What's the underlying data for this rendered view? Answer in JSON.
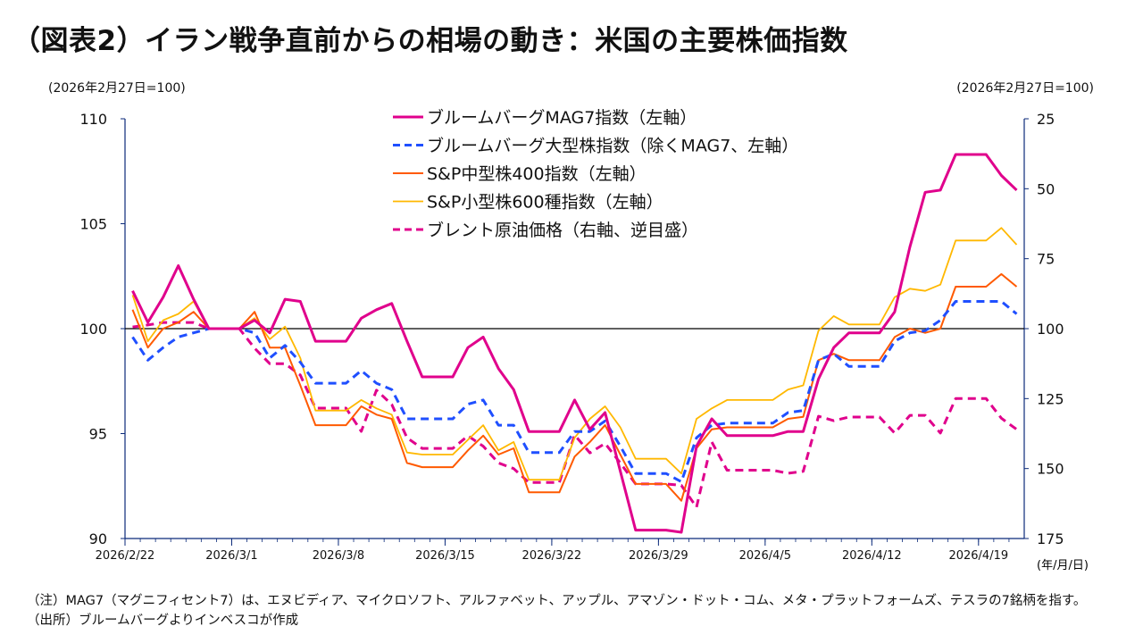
{
  "title": "（図表2）イラン戦争直前からの相場の動き：米国の主要株価指数",
  "notes": {
    "note": "（注）MAG7（マグニフィセント7）は、エヌビディア、マイクロソフト、アルファベット、アップル、アマゾン・ドット・コム、メタ・プラットフォームズ、テスラの7銘柄を指す。",
    "source": "（出所）ブルームバーグよりインベスコが作成"
  },
  "chart_data": {
    "type": "line",
    "title": "（図表2）イラン戦争直前からの相場の動き：米国の主要株価指数",
    "ylabel_left": "(2026年2月27日=100)",
    "ylabel_right": "(2026年2月27日=100)",
    "xlabel": "(年/月/日)",
    "ylim_left": [
      90,
      110
    ],
    "ylim_right": [
      25,
      175
    ],
    "right_axis_inverted": true,
    "yticks_left": [
      110,
      105,
      100,
      95,
      90
    ],
    "yticks_right": [
      25,
      50,
      75,
      100,
      125,
      150,
      175
    ],
    "xticks": [
      "2026/2/22",
      "2026/3/1",
      "2026/3/8",
      "2026/3/15",
      "2026/3/22",
      "2026/3/29",
      "2026/4/5",
      "2026/4/12",
      "2026/4/19"
    ],
    "reference_line": 100,
    "grid": false,
    "legend_placement": "top-center",
    "x": [
      "2026/2/22",
      "2026/2/23",
      "2026/2/24",
      "2026/2/25",
      "2026/2/26",
      "2026/2/27",
      "2026/2/28",
      "2026/3/1",
      "2026/3/2",
      "2026/3/3",
      "2026/3/4",
      "2026/3/5",
      "2026/3/6",
      "2026/3/7",
      "2026/3/8",
      "2026/3/9",
      "2026/3/10",
      "2026/3/11",
      "2026/3/12",
      "2026/3/13",
      "2026/3/14",
      "2026/3/15",
      "2026/3/16",
      "2026/3/17",
      "2026/3/18",
      "2026/3/19",
      "2026/3/20",
      "2026/3/21",
      "2026/3/22",
      "2026/3/23",
      "2026/3/24",
      "2026/3/25",
      "2026/3/26",
      "2026/3/27",
      "2026/3/28",
      "2026/3/29",
      "2026/3/30",
      "2026/3/31",
      "2026/4/1",
      "2026/4/2",
      "2026/4/3",
      "2026/4/4",
      "2026/4/5",
      "2026/4/6",
      "2026/4/7",
      "2026/4/8",
      "2026/4/9",
      "2026/4/10",
      "2026/4/11",
      "2026/4/12",
      "2026/4/13",
      "2026/4/14",
      "2026/4/15",
      "2026/4/16",
      "2026/4/17",
      "2026/4/18",
      "2026/4/19",
      "2026/4/20",
      "2026/4/21"
    ],
    "series": [
      {
        "name": "ブルームバーグMAG7指数（左軸）",
        "axis": "left",
        "color": "#e0008c",
        "style": "solid",
        "values": [
          101.8,
          100.3,
          101.5,
          103.0,
          101.4,
          100,
          100,
          100,
          100.4,
          99.8,
          101.4,
          101.3,
          99.4,
          99.4,
          99.4,
          100.5,
          100.9,
          101.2,
          99.4,
          97.7,
          97.7,
          97.7,
          99.1,
          99.6,
          98.1,
          97.1,
          95.1,
          95.1,
          95.1,
          96.6,
          95.2,
          96.0,
          93.2,
          90.4,
          90.4,
          90.4,
          90.3,
          94.4,
          95.7,
          94.9,
          94.9,
          94.9,
          94.9,
          95.1,
          95.1,
          97.6,
          99.1,
          99.8,
          99.8,
          99.8,
          100.8,
          103.9,
          106.5,
          106.6,
          108.3,
          108.3,
          108.3,
          107.3,
          106.6
        ]
      },
      {
        "name": "ブルームバーグ大型株指数（除くMAG7、左軸）",
        "axis": "left",
        "color": "#1f4fff",
        "style": "dashed",
        "values": [
          99.6,
          98.5,
          99.1,
          99.6,
          99.8,
          100,
          100,
          100,
          99.8,
          98.6,
          99.2,
          98.4,
          97.4,
          97.4,
          97.4,
          98.0,
          97.4,
          97.1,
          95.7,
          95.7,
          95.7,
          95.7,
          96.4,
          96.6,
          95.4,
          95.4,
          94.1,
          94.1,
          94.1,
          95.1,
          95.1,
          95.6,
          94.4,
          93.1,
          93.1,
          93.1,
          92.7,
          94.8,
          95.4,
          95.5,
          95.5,
          95.5,
          95.5,
          96.0,
          96.1,
          98.5,
          98.8,
          98.2,
          98.2,
          98.2,
          99.4,
          99.8,
          99.9,
          100.4,
          101.3,
          101.3,
          101.3,
          101.3,
          100.7
        ]
      },
      {
        "name": "S&P中型株400指数（左軸）",
        "axis": "left",
        "color": "#ff5a00",
        "style": "solid",
        "values": [
          100.9,
          99.1,
          100.0,
          100.3,
          100.8,
          100,
          100,
          100,
          100.8,
          99.1,
          99.1,
          97.3,
          95.4,
          95.4,
          95.4,
          96.3,
          95.9,
          95.7,
          93.6,
          93.4,
          93.4,
          93.4,
          94.2,
          94.9,
          94.0,
          94.3,
          92.2,
          92.2,
          92.2,
          93.9,
          94.6,
          95.4,
          94.0,
          92.6,
          92.6,
          92.6,
          91.8,
          94.3,
          95.2,
          95.3,
          95.3,
          95.3,
          95.3,
          95.7,
          95.8,
          98.5,
          98.8,
          98.5,
          98.5,
          98.5,
          99.6,
          100.0,
          99.8,
          100.0,
          102.0,
          102.0,
          102.0,
          102.6,
          102.0
        ]
      },
      {
        "name": "S&P小型株600種指数（左軸）",
        "axis": "left",
        "color": "#ffb800",
        "style": "solid",
        "values": [
          101.6,
          99.4,
          100.4,
          100.7,
          101.3,
          100,
          100,
          100,
          100.5,
          99.5,
          100.1,
          98.6,
          96.1,
          96.1,
          96.1,
          96.6,
          96.2,
          95.9,
          94.1,
          94.0,
          94.0,
          94.0,
          94.7,
          95.4,
          94.2,
          94.6,
          92.8,
          92.8,
          92.8,
          94.8,
          95.7,
          96.3,
          95.3,
          93.8,
          93.8,
          93.8,
          93.1,
          95.7,
          96.2,
          96.6,
          96.6,
          96.6,
          96.6,
          97.1,
          97.3,
          99.9,
          100.6,
          100.2,
          100.2,
          100.2,
          101.5,
          101.9,
          101.8,
          102.1,
          104.2,
          104.2,
          104.2,
          104.8,
          104.0
        ]
      },
      {
        "name": "ブレント原油価格（右軸、逆目盛）",
        "axis": "right",
        "color": "#e0008c",
        "style": "dashed",
        "values": [
          99.4,
          98.7,
          97.8,
          97.8,
          97.8,
          100,
          100,
          100,
          107,
          112.5,
          112.5,
          116.6,
          128.4,
          128.4,
          128.4,
          136.7,
          122,
          127.1,
          139,
          142.8,
          142.8,
          142.8,
          138.3,
          142,
          148,
          150,
          155,
          155,
          155,
          138,
          144.4,
          141,
          148,
          155.5,
          155.5,
          155.5,
          156,
          163.8,
          140.5,
          150.6,
          150.6,
          150.6,
          150.6,
          151.7,
          151,
          131.3,
          132.9,
          131.6,
          131.6,
          131.6,
          137.3,
          131,
          131,
          137.3,
          125,
          125,
          125,
          132,
          136
        ]
      }
    ]
  }
}
